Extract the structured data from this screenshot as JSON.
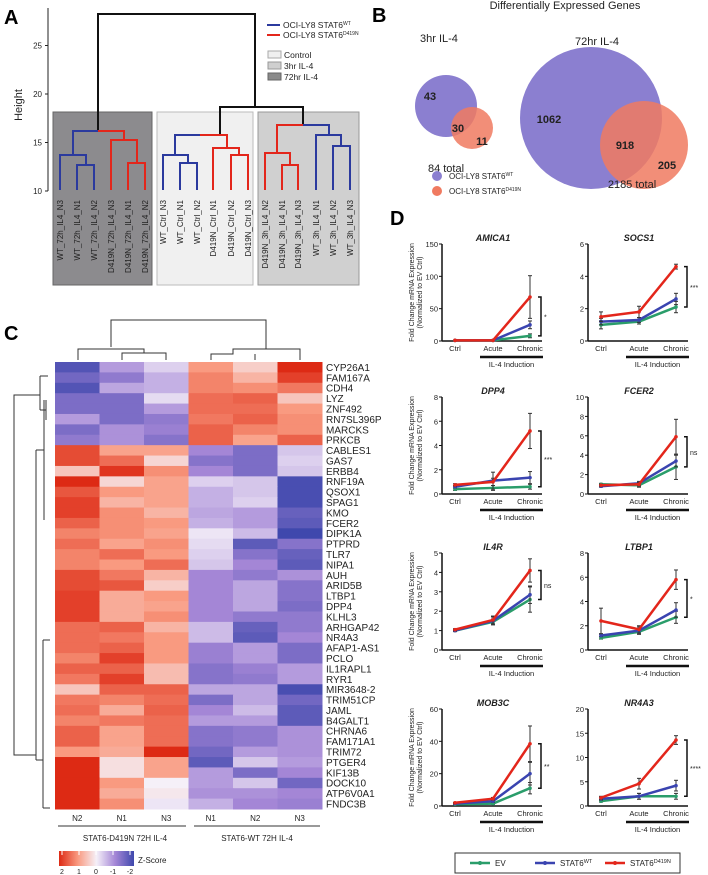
{
  "panels": {
    "a": "A",
    "b": "B",
    "c": "C",
    "d": "D"
  },
  "panel_a": {
    "y_label": "Height",
    "y_ticks": [
      "10",
      "15",
      "20",
      "25"
    ],
    "legend_lines": [
      {
        "label": "OCI-LY8 STAT6",
        "sup": "WT",
        "color": "#2b3a9e"
      },
      {
        "label": "OCI-LY8 STAT6",
        "sup": "D419N",
        "color": "#e3261b"
      }
    ],
    "legend_boxes": [
      {
        "label": "Control",
        "color": "#efefef"
      },
      {
        "label": "3hr IL-4",
        "color": "#cfcfcf"
      },
      {
        "label": "72hr IL-4",
        "color": "#8a8a8a"
      }
    ],
    "leaves": [
      "WT_72h_IL4_N3",
      "WT_72h_IL4_N1",
      "WT_72h_IL4_N2",
      "D419N_72h_IL4_N3",
      "D419N_72h_IL4_N1",
      "D419N_72h_IL4_N2",
      "WT_Ctrl_N3",
      "WT_Ctrl_N1",
      "WT_Ctrl_N2",
      "D419N_Ctrl_N1",
      "D419N_Ctrl_N2",
      "D419N_Ctrl_N3",
      "D419N_3h_IL4_N2",
      "D419N_3h_IL4_N1",
      "D419N_3h_IL4_N3",
      "WT_3h_IL4_N1",
      "WT_3h_IL4_N2",
      "WT_3h_IL4_N3"
    ]
  },
  "panel_b": {
    "title": "Differentially Expressed Genes",
    "venns": [
      {
        "label": "3hr IL-4",
        "wt_only": "43",
        "overlap": "30",
        "d419n_only": "11",
        "total": "84 total"
      },
      {
        "label": "72hr IL-4",
        "wt_only": "1062",
        "overlap": "918",
        "d419n_only": "205",
        "total": "2185 total"
      }
    ],
    "legend": [
      {
        "label": "OCI-LY8 STAT6",
        "sup": "WT",
        "color": "#8b7fd0"
      },
      {
        "label": "OCI-LY8 STAT6",
        "sup": "D419N",
        "color": "#f07a60"
      }
    ]
  },
  "chart_data": [
    {
      "type": "heatmap",
      "title": "",
      "columns": [
        "N2",
        "N1",
        "N3",
        "N1",
        "N2",
        "N3"
      ],
      "groups": [
        "STAT6-D419N 72H IL-4",
        "STAT6-WT 72H IL-4"
      ],
      "colorbar": {
        "label": "Z-Score",
        "ticks": [
          "2",
          "1",
          "0",
          "-1",
          "-2"
        ],
        "range": [
          -2,
          2
        ]
      },
      "rows": [
        {
          "gene": "CYP26A1",
          "z": [
            -1.8,
            -0.8,
            -0.3,
            1.0,
            0.4,
            2.0
          ]
        },
        {
          "gene": "FAM167A",
          "z": [
            -1.5,
            -1.2,
            -0.6,
            1.2,
            0.7,
            1.8
          ]
        },
        {
          "gene": "CDH4",
          "z": [
            -1.8,
            -0.7,
            -0.6,
            1.2,
            1.1,
            1.3
          ]
        },
        {
          "gene": "LYZ",
          "z": [
            -1.4,
            -1.4,
            -0.2,
            1.4,
            1.5,
            0.5
          ]
        },
        {
          "gene": "ZNF492",
          "z": [
            -1.4,
            -1.4,
            -0.8,
            1.4,
            1.4,
            1.0
          ]
        },
        {
          "gene": "RN7SL396P",
          "z": [
            -0.8,
            -1.4,
            -1.2,
            1.3,
            1.5,
            1.1
          ]
        },
        {
          "gene": "MARCKS",
          "z": [
            -1.4,
            -0.9,
            -1.1,
            1.5,
            1.2,
            1.1
          ]
        },
        {
          "gene": "PRKCB",
          "z": [
            -1.2,
            -0.9,
            -1.3,
            1.5,
            0.9,
            1.5
          ]
        },
        {
          "gene": "CABLES1",
          "z": [
            1.7,
            0.9,
            0.9,
            -1.0,
            -1.4,
            -0.4
          ]
        },
        {
          "gene": "GAS7",
          "z": [
            1.7,
            1.4,
            0.3,
            -1.3,
            -1.4,
            -0.3
          ]
        },
        {
          "gene": "ERBB4",
          "z": [
            0.5,
            1.9,
            1.1,
            -1.0,
            -1.4,
            -0.4
          ]
        },
        {
          "gene": "RNF19A",
          "z": [
            2.0,
            0.3,
            0.9,
            -0.3,
            -0.4,
            -1.9
          ]
        },
        {
          "gene": "QSOX1",
          "z": [
            1.6,
            1.0,
            0.9,
            -0.6,
            -0.4,
            -1.9
          ]
        },
        {
          "gene": "SPAG1",
          "z": [
            1.8,
            0.7,
            0.9,
            -0.6,
            -0.3,
            -1.9
          ]
        },
        {
          "gene": "KMO",
          "z": [
            1.8,
            1.1,
            0.7,
            -0.7,
            -0.8,
            -1.6
          ]
        },
        {
          "gene": "FCER2",
          "z": [
            1.5,
            1.1,
            1.0,
            -0.6,
            -0.8,
            -1.7
          ]
        },
        {
          "gene": "DIPK1A",
          "z": [
            1.2,
            1.1,
            0.9,
            -0.1,
            -0.5,
            -2.0
          ]
        },
        {
          "gene": "PTPRD",
          "z": [
            1.4,
            0.9,
            1.1,
            -0.2,
            -1.7,
            -1.3
          ]
        },
        {
          "gene": "TLR7",
          "z": [
            1.2,
            1.4,
            1.0,
            -0.3,
            -1.3,
            -1.6
          ]
        },
        {
          "gene": "NIPA1",
          "z": [
            1.2,
            1.0,
            1.4,
            -0.4,
            -1.0,
            -1.7
          ]
        },
        {
          "gene": "AUH",
          "z": [
            1.7,
            1.3,
            0.7,
            -1.0,
            -1.2,
            -0.9
          ]
        },
        {
          "gene": "ARID5B",
          "z": [
            1.7,
            1.6,
            0.4,
            -1.0,
            -0.7,
            -1.3
          ]
        },
        {
          "gene": "LTBP1",
          "z": [
            1.8,
            0.8,
            1.0,
            -1.0,
            -0.7,
            -1.3
          ]
        },
        {
          "gene": "DPP4",
          "z": [
            1.8,
            0.8,
            0.9,
            -1.0,
            -0.7,
            -1.4
          ]
        },
        {
          "gene": "KLHL3",
          "z": [
            1.8,
            0.8,
            1.1,
            -1.0,
            -1.2,
            -1.2
          ]
        },
        {
          "gene": "ARHGAP42",
          "z": [
            1.4,
            1.5,
            0.7,
            -0.5,
            -1.6,
            -1.2
          ]
        },
        {
          "gene": "NR4A3",
          "z": [
            1.4,
            1.3,
            1.0,
            -0.5,
            -1.7,
            -1.0
          ]
        },
        {
          "gene": "AFAP1-AS1",
          "z": [
            1.4,
            1.5,
            1.0,
            -1.1,
            -0.8,
            -1.4
          ]
        },
        {
          "gene": "PCLO",
          "z": [
            1.2,
            1.8,
            1.0,
            -1.1,
            -0.8,
            -1.4
          ]
        },
        {
          "gene": "IL1RAPL1",
          "z": [
            1.5,
            1.5,
            0.6,
            -1.3,
            -1.1,
            -0.8
          ]
        },
        {
          "gene": "RYR1",
          "z": [
            1.3,
            1.8,
            0.6,
            -1.3,
            -1.2,
            -0.8
          ]
        },
        {
          "gene": "MIR3648-2",
          "z": [
            0.5,
            1.5,
            1.5,
            -0.7,
            -0.7,
            -1.9
          ]
        },
        {
          "gene": "TRIM51CP",
          "z": [
            1.3,
            1.2,
            1.4,
            -1.4,
            -0.7,
            -1.5
          ]
        },
        {
          "gene": "JAML",
          "z": [
            1.4,
            0.8,
            1.5,
            -1.0,
            -0.5,
            -1.7
          ]
        },
        {
          "gene": "B4GALT1",
          "z": [
            1.2,
            1.3,
            1.4,
            -0.8,
            -0.8,
            -1.7
          ]
        },
        {
          "gene": "CHRNA6",
          "z": [
            1.5,
            0.9,
            1.4,
            -1.3,
            -1.2,
            -0.9
          ]
        },
        {
          "gene": "FAM171A1",
          "z": [
            1.5,
            0.9,
            1.4,
            -1.3,
            -1.2,
            -0.9
          ]
        },
        {
          "gene": "TRIM72",
          "z": [
            1.0,
            0.8,
            2.0,
            -1.5,
            -0.8,
            -0.9
          ]
        },
        {
          "gene": "PTGER4",
          "z": [
            2.0,
            0.2,
            0.9,
            -1.7,
            -0.4,
            -0.8
          ]
        },
        {
          "gene": "KIF13B",
          "z": [
            2.0,
            0.2,
            0.9,
            -0.8,
            -1.4,
            -1.0
          ]
        },
        {
          "gene": "DOCK10",
          "z": [
            2.0,
            1.0,
            0.0,
            -0.8,
            -0.4,
            -1.5
          ]
        },
        {
          "gene": "ATP6V0A1",
          "z": [
            2.0,
            0.8,
            0.1,
            -0.9,
            -0.9,
            -1.0
          ]
        },
        {
          "gene": "FNDC3B",
          "z": [
            2.0,
            1.1,
            -0.1,
            -0.6,
            -1.0,
            -1.1
          ]
        }
      ]
    },
    {
      "type": "line",
      "x": [
        "Ctrl",
        "Acute",
        "Chronic"
      ],
      "x_group_label": "IL-4  Induction",
      "ylabel": "Fold Change mRNA Expression",
      "ylabel2": "(Normalized to EV Ctrl)",
      "series_meta": [
        {
          "name": "EV",
          "sup": "",
          "color": "#2a9d6a"
        },
        {
          "name": "STAT6",
          "sup": "WT",
          "color": "#3a44b0"
        },
        {
          "name": "STAT6",
          "sup": "D419N",
          "color": "#e3261b"
        }
      ],
      "plots": [
        {
          "title": "AMICA1",
          "ylim": [
            0,
            150
          ],
          "yticks": [
            "0",
            "50",
            "100",
            "150"
          ],
          "sig": "*",
          "series": [
            [
              1,
              1,
              8
            ],
            [
              1,
              1,
              25
            ],
            [
              1,
              1,
              68
            ]
          ],
          "err": [
            [
              0,
              0,
              3
            ],
            [
              0,
              0,
              6
            ],
            [
              0,
              0,
              33
            ]
          ]
        },
        {
          "title": "SOCS1",
          "ylim": [
            0,
            6
          ],
          "yticks": [
            "0",
            "2",
            "4",
            "6"
          ],
          "sig": "***",
          "series": [
            [
              1.0,
              1.2,
              2.1
            ],
            [
              1.2,
              1.3,
              2.6
            ],
            [
              1.5,
              1.8,
              4.6
            ]
          ],
          "err": [
            [
              0.25,
              0.15,
              0.35
            ],
            [
              0.2,
              0.15,
              0.35
            ],
            [
              0.3,
              0.35,
              0.15
            ]
          ]
        },
        {
          "title": "DPP4",
          "ylim": [
            0,
            8
          ],
          "yticks": [
            "0",
            "2",
            "4",
            "6",
            "8"
          ],
          "sig": "***",
          "series": [
            [
              0.4,
              0.5,
              0.6
            ],
            [
              0.6,
              1.1,
              1.35
            ],
            [
              0.75,
              1.0,
              5.2
            ]
          ],
          "err": [
            [
              0.1,
              0.2,
              0.2
            ],
            [
              0.1,
              0.7,
              0.5
            ],
            [
              0.1,
              0.3,
              1.45
            ]
          ]
        },
        {
          "title": "FCER2",
          "ylim": [
            0,
            10
          ],
          "yticks": [
            "0",
            "2",
            "4",
            "6",
            "8",
            "10"
          ],
          "sig": "ns",
          "series": [
            [
              1.0,
              0.9,
              2.8
            ],
            [
              0.8,
              1.1,
              3.4
            ],
            [
              0.9,
              1.0,
              5.9
            ]
          ],
          "err": [
            [
              0.1,
              0.2,
              1.3
            ],
            [
              0.1,
              0.2,
              0.6
            ],
            [
              0.1,
              0.2,
              1.8
            ]
          ]
        },
        {
          "title": "IL4R",
          "ylim": [
            0,
            5
          ],
          "yticks": [
            "0",
            "1",
            "2",
            "3",
            "4",
            "5"
          ],
          "sig": "ns",
          "series": [
            [
              1.0,
              1.45,
              2.6
            ],
            [
              1.0,
              1.5,
              2.85
            ],
            [
              1.05,
              1.55,
              4.1
            ]
          ],
          "err": [
            [
              0.05,
              0.15,
              0.65
            ],
            [
              0.05,
              0.2,
              0.45
            ],
            [
              0.05,
              0.2,
              0.6
            ]
          ]
        },
        {
          "title": "LTBP1",
          "ylim": [
            0,
            8
          ],
          "yticks": [
            "0",
            "2",
            "4",
            "6",
            "8"
          ],
          "sig": "*",
          "series": [
            [
              1.0,
              1.5,
              2.7
            ],
            [
              1.2,
              1.6,
              3.3
            ],
            [
              2.4,
              1.7,
              5.8
            ]
          ],
          "err": [
            [
              0.1,
              0.2,
              0.5
            ],
            [
              0.1,
              0.3,
              0.6
            ],
            [
              1.05,
              0.3,
              0.8
            ]
          ]
        },
        {
          "title": "MOB3C",
          "ylim": [
            0,
            60
          ],
          "yticks": [
            "0",
            "20",
            "40",
            "60"
          ],
          "sig": "**",
          "series": [
            [
              1,
              1.5,
              11
            ],
            [
              1.5,
              3,
              20
            ],
            [
              2,
              4.5,
              38.5
            ]
          ],
          "err": [
            [
              0.3,
              0.5,
              3.5
            ],
            [
              0.3,
              0.7,
              7
            ],
            [
              0.3,
              0.8,
              11
            ]
          ]
        },
        {
          "title": "NR4A3",
          "ylim": [
            0,
            20
          ],
          "yticks": [
            "0",
            "5",
            "10",
            "15",
            "20"
          ],
          "sig": "****",
          "series": [
            [
              1,
              2,
              2
            ],
            [
              1.5,
              2,
              4.2
            ],
            [
              1.7,
              4.6,
              13.6
            ]
          ],
          "err": [
            [
              0.2,
              0.6,
              0.6
            ],
            [
              0.3,
              0.6,
              1.1
            ],
            [
              0.3,
              1.1,
              0.9
            ]
          ]
        }
      ]
    }
  ]
}
